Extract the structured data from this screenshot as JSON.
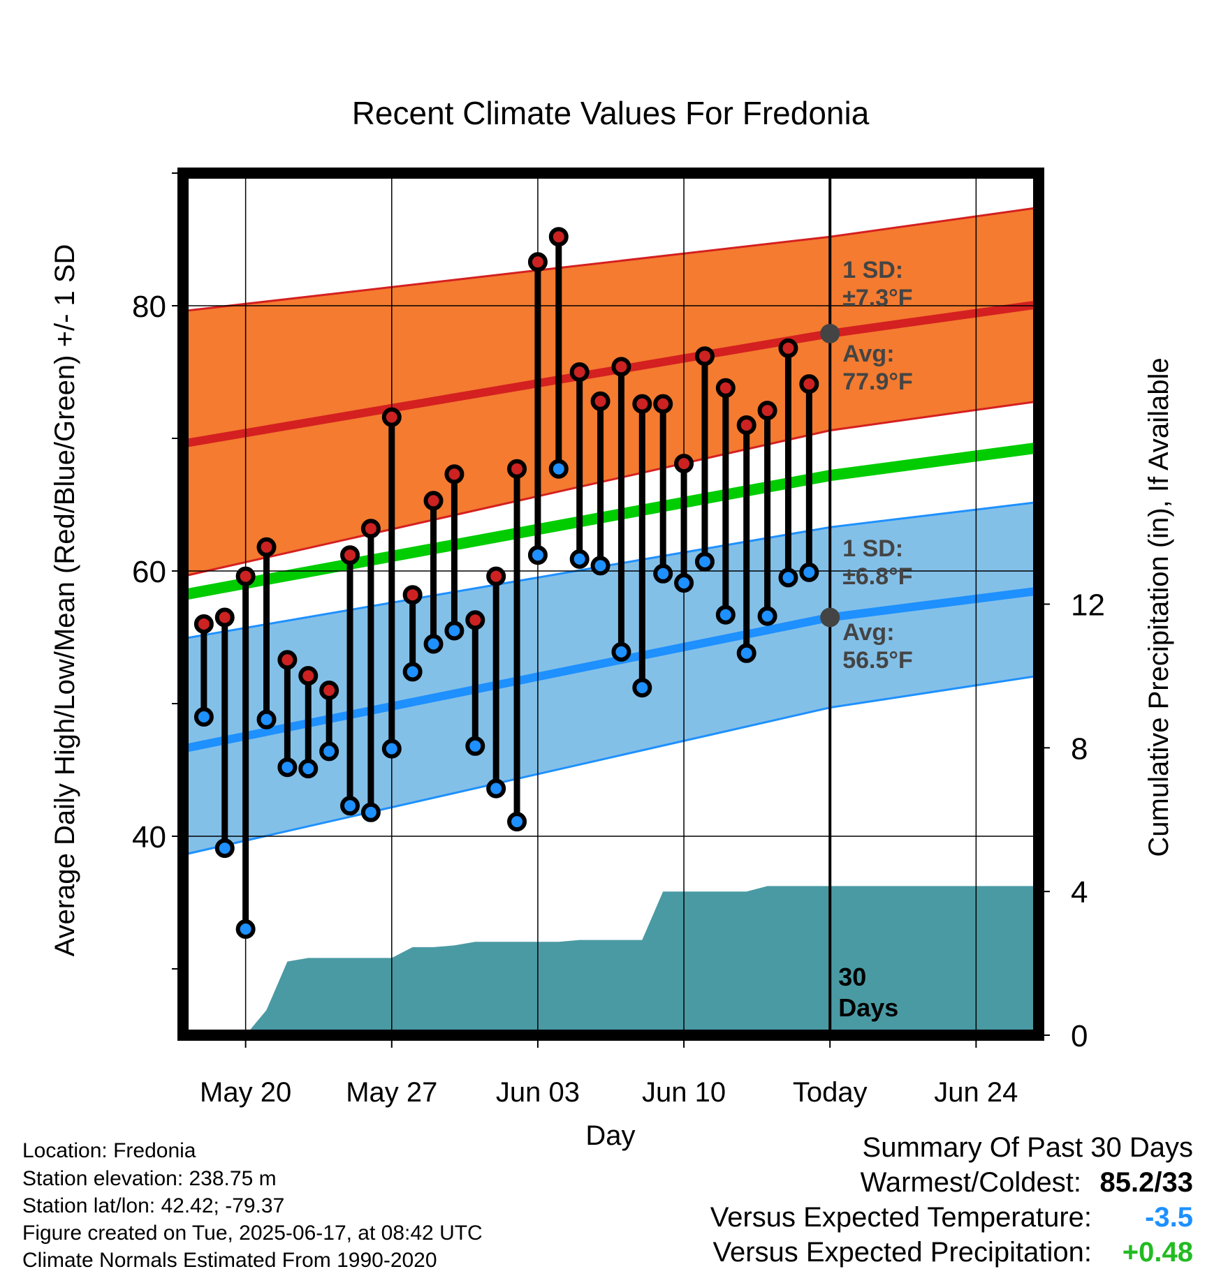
{
  "chart_data": {
    "type": "line",
    "title": "Recent Climate Values For Fredonia",
    "xlabel": "Day",
    "ylabel": "Average Daily High/Low/Mean (Red/Blue/Green) +/- 1 SD",
    "y2label": "Cumulative Precipitation (in), If Available",
    "ylim": [
      25,
      90
    ],
    "y2lim": [
      0,
      24
    ],
    "y_ticks": [
      "80",
      "60",
      "40"
    ],
    "y2_ticks": [
      "12",
      "8",
      "4",
      "0"
    ],
    "x_ticks": [
      "May 20",
      "May 27",
      "Jun 03",
      "Jun 10",
      "Today",
      "Jun 24"
    ],
    "x_range_days": [
      "2025-05-17",
      "2025-06-27"
    ],
    "grid": true,
    "today_marker": "2025-06-17",
    "days_label": "30 Days",
    "high_band": {
      "label": "1 SD:",
      "value_text": "±7.3°F",
      "avg_label": "Avg:",
      "avg_text": "77.9°F",
      "color": "#f47b30",
      "mean_color": "#d42020",
      "x": [
        "2025-05-17",
        "2025-06-17",
        "2025-06-27"
      ],
      "mean": [
        69.6,
        77.9,
        80.1
      ],
      "upper": [
        79.6,
        85.2,
        87.4
      ],
      "lower": [
        59.6,
        70.6,
        72.8
      ]
    },
    "low_band": {
      "label": "1 SD:",
      "value_text": "±6.8°F",
      "avg_label": "Avg:",
      "avg_text": "56.5°F",
      "color": "#83c0e8",
      "mean_color": "#1e90ff",
      "x": [
        "2025-05-17",
        "2025-06-17",
        "2025-06-27"
      ],
      "mean": [
        46.6,
        56.5,
        58.5
      ],
      "upper": [
        54.9,
        63.3,
        65.2
      ],
      "lower": [
        38.6,
        49.7,
        52.1
      ]
    },
    "mean_line": {
      "color": "#00cc00",
      "x": [
        "2025-05-17",
        "2025-06-17",
        "2025-06-27"
      ],
      "y": [
        58.2,
        67.2,
        69.3
      ]
    },
    "daily": {
      "high_color": "#cc2222",
      "low_color": "#1e90ff",
      "x": [
        "2025-05-18",
        "2025-05-19",
        "2025-05-20",
        "2025-05-21",
        "2025-05-22",
        "2025-05-23",
        "2025-05-24",
        "2025-05-25",
        "2025-05-26",
        "2025-05-27",
        "2025-05-28",
        "2025-05-29",
        "2025-05-30",
        "2025-05-31",
        "2025-06-01",
        "2025-06-02",
        "2025-06-03",
        "2025-06-04",
        "2025-06-05",
        "2025-06-06",
        "2025-06-07",
        "2025-06-08",
        "2025-06-09",
        "2025-06-10",
        "2025-06-11",
        "2025-06-12",
        "2025-06-13",
        "2025-06-14",
        "2025-06-15",
        "2025-06-16"
      ],
      "high": [
        56.0,
        56.5,
        59.6,
        61.8,
        53.3,
        52.1,
        51.0,
        61.2,
        63.2,
        71.6,
        58.2,
        65.3,
        67.3,
        56.3,
        59.6,
        67.7,
        83.3,
        85.2,
        75.0,
        72.8,
        75.4,
        72.6,
        72.6,
        68.1,
        76.2,
        73.8,
        71.0,
        72.1,
        76.8,
        74.1
      ],
      "low": [
        49.0,
        39.1,
        33.0,
        48.8,
        45.2,
        45.1,
        46.4,
        42.3,
        41.8,
        46.6,
        52.4,
        54.5,
        55.5,
        46.8,
        43.6,
        41.1,
        61.2,
        67.7,
        60.9,
        60.4,
        53.9,
        51.2,
        59.8,
        59.1,
        60.7,
        56.7,
        53.8,
        56.6,
        59.5,
        59.9
      ]
    },
    "precip": {
      "color": "#4a9aa4",
      "x": [
        "2025-05-20",
        "2025-05-21",
        "2025-05-22",
        "2025-05-23",
        "2025-05-24",
        "2025-05-26",
        "2025-05-27",
        "2025-05-28",
        "2025-05-29",
        "2025-05-30",
        "2025-05-31",
        "2025-06-01",
        "2025-06-03",
        "2025-06-04",
        "2025-06-05",
        "2025-06-06",
        "2025-06-07",
        "2025-06-08",
        "2025-06-09",
        "2025-06-10",
        "2025-06-11",
        "2025-06-12",
        "2025-06-13",
        "2025-06-14",
        "2025-06-15",
        "2025-06-16",
        "2025-06-17",
        "2025-06-27"
      ],
      "y": [
        0.0,
        0.7,
        2.05,
        2.15,
        2.15,
        2.15,
        2.15,
        2.45,
        2.45,
        2.5,
        2.6,
        2.6,
        2.6,
        2.6,
        2.65,
        2.65,
        2.65,
        2.65,
        4.0,
        4.0,
        4.0,
        4.0,
        4.0,
        4.15,
        4.15,
        4.15,
        4.15,
        4.15
      ]
    }
  },
  "meta": {
    "location": "Location: Fredonia",
    "elevation": "Station elevation: 238.75 m",
    "latlon": "Station lat/lon: 42.42; -79.37",
    "created": "Figure created on Tue, 2025-06-17, at 08:42 UTC",
    "normals": "Climate Normals Estimated From 1990-2020"
  },
  "summary": {
    "title": "Summary Of Past 30 Days",
    "warmest_label": "Warmest/Coldest:",
    "warmest_value": "85.2/33",
    "temp_label": "Versus Expected Temperature:",
    "temp_value": "-3.5",
    "temp_color": "#1e90ff",
    "precip_label": "Versus Expected Precipitation:",
    "precip_value": "+0.48",
    "precip_color": "#22bb22"
  }
}
